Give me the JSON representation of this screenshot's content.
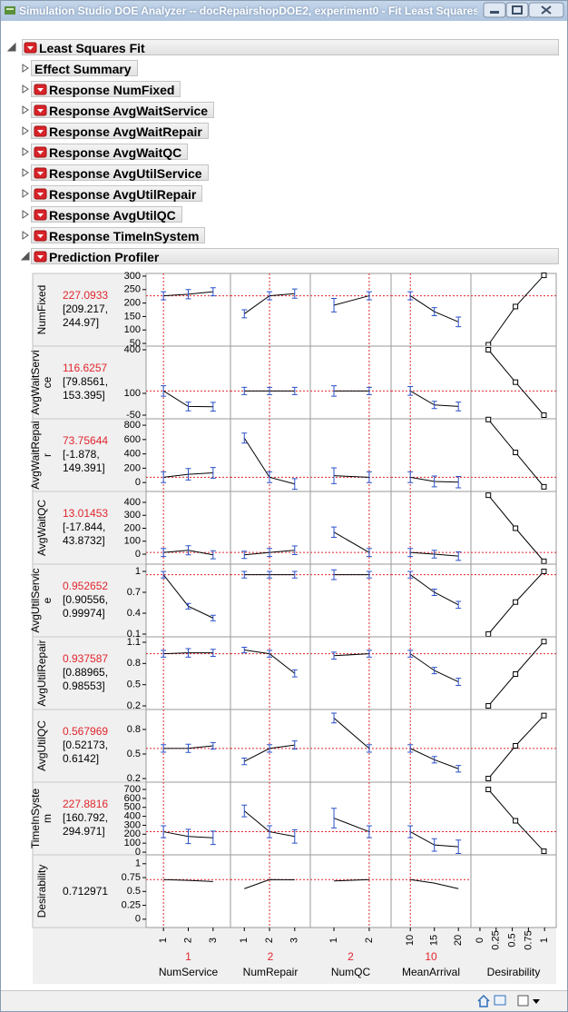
{
  "window": {
    "title": "Simulation Studio DOE Analyzer -- docRepairshopDOE2, experiment0 - Fit Least Squares - ..."
  },
  "outline": {
    "title": "Least Squares Fit",
    "items": [
      {
        "label": "Effect Summary",
        "menu": false,
        "open": false
      },
      {
        "label": "Response NumFixed",
        "menu": true,
        "open": false
      },
      {
        "label": "Response AvgWaitService",
        "menu": true,
        "open": false
      },
      {
        "label": "Response AvgWaitRepair",
        "menu": true,
        "open": false
      },
      {
        "label": "Response AvgWaitQC",
        "menu": true,
        "open": false
      },
      {
        "label": "Response AvgUtilService",
        "menu": true,
        "open": false
      },
      {
        "label": "Response AvgUtilRepair",
        "menu": true,
        "open": false
      },
      {
        "label": "Response AvgUtilQC",
        "menu": true,
        "open": false
      },
      {
        "label": "Response TimeInSystem",
        "menu": true,
        "open": false
      },
      {
        "label": "Prediction Profiler",
        "menu": true,
        "open": true
      }
    ]
  },
  "profiler": {
    "factors": [
      {
        "name": "NumService",
        "current": 1,
        "x": [
          1,
          2,
          3
        ],
        "xlim": [
          0.3,
          3.7
        ],
        "xticks": [
          1,
          2,
          3
        ]
      },
      {
        "name": "NumRepair",
        "current": 2,
        "x": [
          1,
          2,
          3
        ],
        "xlim": [
          0.45,
          3.62
        ],
        "xticks": [
          1,
          2,
          3
        ]
      },
      {
        "name": "NumQC",
        "current": 2,
        "x": [
          1,
          2
        ],
        "xlim": [
          0.33,
          2.62
        ],
        "xticks": [
          1,
          2
        ]
      },
      {
        "name": "MeanArrival",
        "current": 10,
        "x": [
          10,
          15,
          20
        ],
        "xlim": [
          6,
          22.6
        ],
        "xticks": [
          10,
          15,
          20
        ]
      }
    ],
    "desirability_axis": {
      "name": "Desirability",
      "xlim": [
        -0.14,
        1.18
      ],
      "xticks": [
        0,
        0.25,
        0.5,
        0.75,
        1
      ]
    },
    "responses": [
      {
        "name": "NumFixed",
        "current": 227.0933,
        "ci_label": "[209.217, 244.97]",
        "ylim": [
          40,
          310
        ],
        "yticks": [
          300,
          250,
          200,
          150,
          100,
          50
        ],
        "traces": [
          {
            "values": [
              227.0933,
              233,
              242
            ],
            "errors": [
              15,
              17,
              15
            ]
          },
          {
            "values": [
              160,
              227.0933,
              235
            ],
            "errors": [
              15,
              15,
              17
            ]
          },
          {
            "values": [
              192,
              227.0933
            ],
            "errors": [
              25,
              15
            ]
          },
          {
            "values": [
              227.0933,
              168,
              130
            ],
            "errors": [
              15,
              15,
              18
            ]
          }
        ],
        "desirability": {
          "x": [
            0.13,
            0.55,
            0.99
          ],
          "y": [
            45,
            187,
            303
          ]
        }
      },
      {
        "name": "AvgWaitService",
        "current": 116.6257,
        "ci_label": "[79.8561, 153.395]",
        "ylim": [
          -75,
          425
        ],
        "yticks": [
          400,
          100,
          -50
        ],
        "traces": [
          {
            "values": [
              116.6257,
              10,
              8
            ],
            "errors": [
              36,
              30,
              30
            ]
          },
          {
            "values": [
              116.6257,
              116.6257,
              116.6257
            ],
            "errors": [
              25,
              25,
              25
            ]
          },
          {
            "values": [
              116.6257,
              116.6257
            ],
            "errors": [
              36,
              25
            ]
          },
          {
            "values": [
              116.6257,
              20,
              10
            ],
            "errors": [
              30,
              25,
              30
            ]
          }
        ],
        "desirability": {
          "x": [
            0.13,
            0.55,
            0.99
          ],
          "y": [
            400,
            177,
            -50
          ]
        }
      },
      {
        "name": "AvgWaitRepair",
        "current": 73.75644,
        "ci_label": "[-1.878, 149.391]",
        "ylim": [
          -125,
          890
        ],
        "yticks": [
          800,
          600,
          400,
          200,
          0
        ],
        "traces": [
          {
            "values": [
              73.75644,
              115,
              135
            ],
            "errors": [
              75,
              80,
              75
            ]
          },
          {
            "values": [
              620,
              73.75644,
              -20
            ],
            "errors": [
              70,
              75,
              75
            ]
          },
          {
            "values": [
              95,
              73.75644
            ],
            "errors": [
              110,
              75
            ]
          },
          {
            "values": [
              73.75644,
              15,
              5
            ],
            "errors": [
              75,
              75,
              80
            ]
          }
        ],
        "desirability": {
          "x": [
            0.13,
            0.55,
            0.99
          ],
          "y": [
            880,
            420,
            -60
          ]
        }
      },
      {
        "name": "AvgWaitQC",
        "current": 13.01453,
        "ci_label": "[-17.844, 43.8732]",
        "ylim": [
          -77,
          484
        ],
        "yticks": [
          400,
          300,
          200,
          100,
          0
        ],
        "traces": [
          {
            "values": [
              13.01453,
              30,
              -5
            ],
            "errors": [
              31,
              35,
              31
            ]
          },
          {
            "values": [
              -5,
              13.01453,
              30
            ],
            "errors": [
              28,
              31,
              33
            ]
          },
          {
            "values": [
              170,
              13.01453
            ],
            "errors": [
              40,
              31
            ]
          },
          {
            "values": [
              13.01453,
              0,
              -15
            ],
            "errors": [
              31,
              30,
              33
            ]
          }
        ],
        "desirability": {
          "x": [
            0.13,
            0.55,
            0.99
          ],
          "y": [
            455,
            200,
            -55
          ]
        }
      },
      {
        "name": "AvgUtilService",
        "current": 0.952652,
        "ci_label": "[0.90556, 0.99974]",
        "ylim": [
          0.061,
          1.104
        ],
        "yticks": [
          1,
          0.7,
          0.4,
          0.1
        ],
        "traces": [
          {
            "values": [
              0.952652,
              0.5,
              0.33
            ],
            "errors": [
              0.047,
              0.04,
              0.04
            ]
          },
          {
            "values": [
              0.952652,
              0.952652,
              0.952652
            ],
            "errors": [
              0.047,
              0.047,
              0.047
            ]
          },
          {
            "values": [
              0.952652,
              0.952652
            ],
            "errors": [
              0.07,
              0.047
            ]
          },
          {
            "values": [
              0.952652,
              0.7,
              0.52
            ],
            "errors": [
              0.047,
              0.045,
              0.05
            ]
          }
        ],
        "desirability": {
          "x": [
            0.13,
            0.55,
            0.99
          ],
          "y": [
            0.1,
            0.56,
            1.0
          ]
        }
      },
      {
        "name": "AvgUtilRepair",
        "current": 0.937587,
        "ci_label": "[0.88965, 0.98553]",
        "ylim": [
          0.149,
          1.177
        ],
        "yticks": [
          1.1,
          0.8,
          0.5,
          0.2
        ],
        "traces": [
          {
            "values": [
              0.937587,
              0.95,
              0.95
            ],
            "errors": [
              0.048,
              0.06,
              0.05
            ]
          },
          {
            "values": [
              0.99,
              0.937587,
              0.66
            ],
            "errors": [
              0.04,
              0.048,
              0.05
            ]
          },
          {
            "values": [
              0.91,
              0.937587
            ],
            "errors": [
              0.05,
              0.048
            ]
          },
          {
            "values": [
              0.937587,
              0.7,
              0.54
            ],
            "errors": [
              0.048,
              0.045,
              0.05
            ]
          }
        ],
        "desirability": {
          "x": [
            0.13,
            0.55,
            0.99
          ],
          "y": [
            0.2,
            0.65,
            1.11
          ]
        }
      },
      {
        "name": "AvgUtilQC",
        "current": 0.567969,
        "ci_label": "[0.52173, 0.6142]",
        "ylim": [
          0.156,
          1.044
        ],
        "yticks": [
          0.8,
          0.5,
          0.2
        ],
        "traces": [
          {
            "values": [
              0.567969,
              0.57,
              0.6
            ],
            "errors": [
              0.046,
              0.05,
              0.04
            ]
          },
          {
            "values": [
              0.41,
              0.567969,
              0.61
            ],
            "errors": [
              0.04,
              0.046,
              0.05
            ]
          },
          {
            "values": [
              0.94,
              0.567969
            ],
            "errors": [
              0.06,
              0.046
            ]
          },
          {
            "values": [
              0.567969,
              0.43,
              0.32
            ],
            "errors": [
              0.046,
              0.04,
              0.04
            ]
          }
        ],
        "desirability": {
          "x": [
            0.13,
            0.55,
            0.99
          ],
          "y": [
            0.2,
            0.6,
            0.97
          ]
        }
      },
      {
        "name": "TimeInSystem",
        "current": 227.8816,
        "ci_label": "[160.792, 294.971]",
        "ylim": [
          -30,
          781
        ],
        "yticks": [
          700,
          600,
          500,
          400,
          300,
          200,
          100,
          0
        ],
        "traces": [
          {
            "values": [
              227.8816,
              175,
              160
            ],
            "errors": [
              67,
              80,
              75
            ]
          },
          {
            "values": [
              460,
              227.8816,
              175
            ],
            "errors": [
              65,
              67,
              75
            ]
          },
          {
            "values": [
              380,
              227.8816
            ],
            "errors": [
              110,
              67
            ]
          },
          {
            "values": [
              227.8816,
              80,
              60
            ],
            "errors": [
              67,
              70,
              75
            ]
          }
        ],
        "desirability": {
          "x": [
            0.13,
            0.55,
            0.99
          ],
          "y": [
            700,
            350,
            10
          ]
        }
      },
      {
        "name": "Desirability",
        "current": 0.712971,
        "ylim": [
          -0.15,
          1.16
        ],
        "yticks": [
          1,
          0.75,
          0.5,
          0.25,
          0
        ],
        "traces": [
          {
            "values": [
              0.712971,
              0.7,
              0.68
            ]
          },
          {
            "values": [
              0.55,
              0.712971,
              0.71
            ]
          },
          {
            "values": [
              0.69,
              0.712971
            ]
          },
          {
            "values": [
              0.712971,
              0.65,
              0.55
            ]
          }
        ]
      }
    ]
  }
}
